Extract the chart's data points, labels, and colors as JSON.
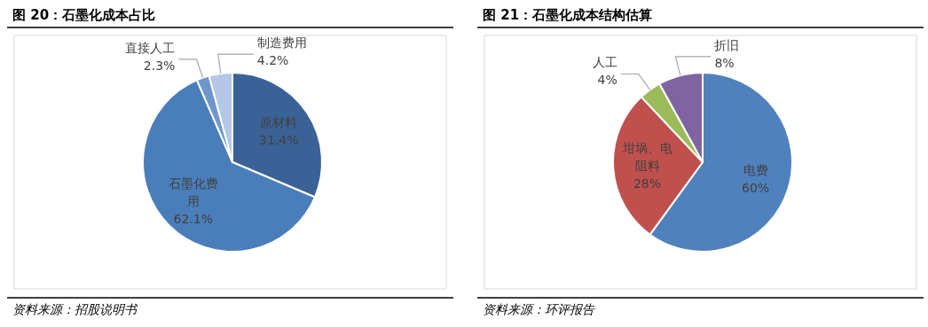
{
  "chart_data": [
    {
      "type": "pie",
      "title": "图 20：石墨化成本占比",
      "categories": [
        "原材料",
        "石墨化费用",
        "直接人工",
        "制造费用"
      ],
      "values": [
        31.4,
        62.1,
        2.3,
        4.2
      ],
      "colors": [
        "#3b6296",
        "#4a7ebb",
        "#6f97cc",
        "#b4c7e7"
      ],
      "value_labels": [
        "31.4%",
        "62.1%",
        "2.3%",
        "4.2%"
      ],
      "annotations": [
        "资料来源：招股说明书"
      ]
    },
    {
      "type": "pie",
      "title": "图 21：石墨化成本结构估算",
      "categories": [
        "电费",
        "坩埚、电阻料",
        "人工",
        "折旧"
      ],
      "values": [
        60,
        28,
        4,
        8
      ],
      "colors": [
        "#4f81bd",
        "#c0504d",
        "#9bbb59",
        "#8064a2"
      ],
      "value_labels": [
        "60%",
        "28%",
        "4%",
        "8%"
      ],
      "annotations": [
        "资料来源：环评报告"
      ]
    }
  ]
}
